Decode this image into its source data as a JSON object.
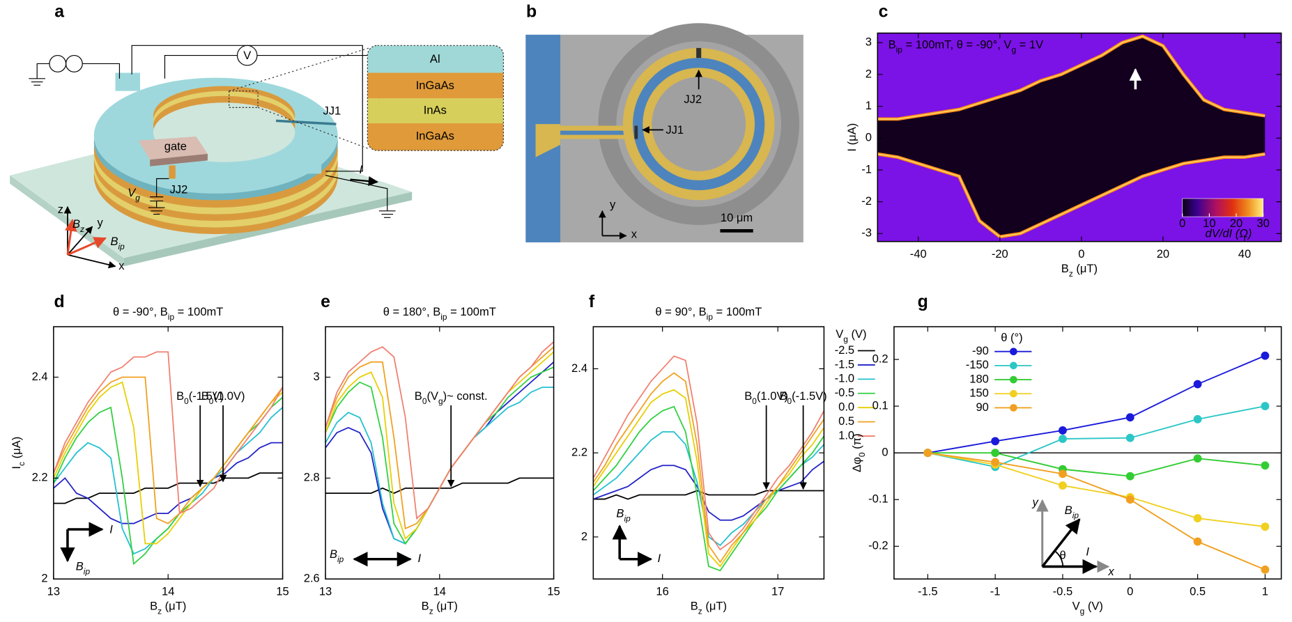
{
  "panel_labels": [
    "a",
    "b",
    "c",
    "d",
    "e",
    "f",
    "g"
  ],
  "schematic": {
    "layers": [
      "Al",
      "InGaAs",
      "InAs",
      "InGaAs"
    ],
    "gate": "gate",
    "jj1": "JJ1",
    "jj2": "JJ2",
    "voltmeter": "V",
    "current": "I",
    "gate_voltage": [
      "V",
      "g"
    ],
    "axes": [
      "z",
      "y",
      "x"
    ],
    "fields": [
      [
        "B",
        "z"
      ],
      [
        "B",
        "ip"
      ]
    ]
  },
  "micrograph": {
    "jj1": "JJ1",
    "jj2": "JJ2",
    "scale_bar": "10 μm",
    "axes": [
      "y",
      "x"
    ]
  },
  "chart_data": [
    {
      "type": "heatmap",
      "title": [
        "B",
        "ip",
        " = 100mT, θ = -90°, V",
        "g",
        " = 1V"
      ],
      "xlabel": [
        "B",
        "z",
        " (μT)"
      ],
      "ylabel": "I (μA)",
      "x": [
        -50,
        -45,
        -40,
        -35,
        -30,
        -25,
        -20,
        -15,
        -10,
        -5,
        0,
        5,
        10,
        15,
        20,
        25,
        30,
        35,
        40,
        45
      ],
      "ic_plus": [
        0.6,
        0.6,
        0.7,
        0.8,
        0.9,
        1.1,
        1.3,
        1.5,
        1.8,
        2.0,
        2.3,
        2.6,
        3.0,
        3.2,
        2.9,
        2.0,
        1.2,
        0.9,
        0.8,
        0.7
      ],
      "ic_minus": [
        -0.5,
        -0.6,
        -0.8,
        -1.0,
        -1.2,
        -2.6,
        -3.1,
        -3.0,
        -2.7,
        -2.4,
        -2.1,
        -1.8,
        -1.5,
        -1.2,
        -1.0,
        -0.8,
        -0.7,
        -0.6,
        -0.6,
        -0.5
      ],
      "xlim": [
        -50,
        49
      ],
      "ylim": [
        -3.25,
        3.3
      ],
      "xticks": [
        -40,
        -20,
        0,
        20,
        40
      ],
      "yticks": [
        -3,
        -2,
        -1,
        0,
        1,
        2,
        3
      ],
      "colorbar_label": "dV/dI (Ω)",
      "clim": [
        0,
        30
      ],
      "cticks": [
        0,
        10,
        20,
        30
      ]
    },
    {
      "type": "line",
      "title": [
        "θ = -90°, B",
        "ip",
        " = 100mT"
      ],
      "xlabel": [
        "B",
        "z",
        " (μT)"
      ],
      "ylabel": [
        "I",
        "c",
        " (μA)"
      ],
      "x": [
        13,
        13.1,
        13.2,
        13.3,
        13.4,
        13.5,
        13.6,
        13.7,
        13.8,
        13.9,
        14,
        14.1,
        14.2,
        14.3,
        14.4,
        14.5,
        14.6,
        14.7,
        14.8,
        14.9,
        15
      ],
      "xlim": [
        13,
        15
      ],
      "ylim": [
        2,
        2.5
      ],
      "xticks": [
        13,
        14,
        15
      ],
      "yticks": [
        2,
        2.2,
        2.4
      ],
      "series": [
        {
          "color": "#000000",
          "values": [
            2.15,
            2.15,
            2.16,
            2.16,
            2.17,
            2.17,
            2.17,
            2.17,
            2.18,
            2.18,
            2.18,
            2.19,
            2.19,
            2.19,
            2.19,
            2.2,
            2.2,
            2.2,
            2.21,
            2.21,
            2.21
          ]
        },
        {
          "color": "#2222c8",
          "values": [
            2.18,
            2.2,
            2.17,
            2.16,
            2.14,
            2.12,
            2.11,
            2.11,
            2.12,
            2.13,
            2.13,
            2.15,
            2.16,
            2.18,
            2.2,
            2.21,
            2.23,
            2.24,
            2.26,
            2.27,
            2.27
          ]
        },
        {
          "color": "#22c0d0",
          "values": [
            2.19,
            2.22,
            2.25,
            2.27,
            2.26,
            2.24,
            2.1,
            2.05,
            2.06,
            2.08,
            2.1,
            2.13,
            2.15,
            2.17,
            2.2,
            2.22,
            2.25,
            2.27,
            2.29,
            2.32,
            2.34
          ]
        },
        {
          "color": "#30d040",
          "values": [
            2.19,
            2.24,
            2.28,
            2.31,
            2.33,
            2.34,
            2.2,
            2.03,
            2.05,
            2.08,
            2.1,
            2.13,
            2.15,
            2.18,
            2.2,
            2.23,
            2.26,
            2.29,
            2.31,
            2.34,
            2.36
          ]
        },
        {
          "color": "#e6cf00",
          "values": [
            2.2,
            2.25,
            2.29,
            2.33,
            2.36,
            2.38,
            2.39,
            2.3,
            2.07,
            2.07,
            2.09,
            2.12,
            2.15,
            2.18,
            2.2,
            2.23,
            2.26,
            2.29,
            2.32,
            2.35,
            2.37
          ]
        },
        {
          "color": "#f0a020",
          "values": [
            2.21,
            2.26,
            2.3,
            2.34,
            2.37,
            2.39,
            2.4,
            2.4,
            2.4,
            2.12,
            2.11,
            2.13,
            2.16,
            2.18,
            2.2,
            2.23,
            2.26,
            2.29,
            2.32,
            2.35,
            2.38
          ]
        },
        {
          "color": "#f08070",
          "values": [
            2.21,
            2.27,
            2.31,
            2.35,
            2.38,
            2.41,
            2.42,
            2.44,
            2.44,
            2.45,
            2.45,
            2.13,
            2.14,
            2.16,
            2.18,
            2.22,
            2.25,
            2.28,
            2.31,
            2.34,
            2.38
          ]
        }
      ],
      "annotations": [
        {
          "label": [
            "B",
            "0",
            "(-1.5V)"
          ],
          "color": "#2222c8",
          "x": 14.28,
          "y": 2.18
        },
        {
          "label": [
            "B",
            "0",
            "(1.0V)"
          ],
          "color": "#e02a10",
          "x": 14.48,
          "y": 2.19
        }
      ],
      "inset": {
        "current": "I",
        "field": [
          "B",
          "ip"
        ]
      }
    },
    {
      "type": "line",
      "title": [
        "θ = 180°, B",
        "ip",
        " = 100mT"
      ],
      "xlabel": [
        "B",
        "z",
        " (μT)"
      ],
      "x": [
        13,
        13.1,
        13.2,
        13.3,
        13.4,
        13.5,
        13.6,
        13.7,
        13.8,
        13.9,
        14,
        14.1,
        14.2,
        14.3,
        14.4,
        14.5,
        14.6,
        14.7,
        14.8,
        14.9,
        15
      ],
      "xlim": [
        13,
        15
      ],
      "ylim": [
        2.6,
        3.1
      ],
      "xticks": [
        13,
        14,
        15
      ],
      "yticks": [
        2.6,
        2.8,
        3
      ],
      "series": [
        {
          "color": "#000000",
          "values": [
            2.77,
            2.77,
            2.77,
            2.77,
            2.77,
            2.78,
            2.77,
            2.78,
            2.78,
            2.78,
            2.78,
            2.78,
            2.79,
            2.79,
            2.79,
            2.79,
            2.79,
            2.8,
            2.8,
            2.8,
            2.8
          ]
        },
        {
          "color": "#2222c8",
          "values": [
            2.86,
            2.89,
            2.9,
            2.89,
            2.85,
            2.74,
            2.68,
            2.67,
            2.7,
            2.74,
            2.78,
            2.82,
            2.85,
            2.88,
            2.9,
            2.93,
            2.95,
            2.97,
            2.99,
            3.01,
            3.03
          ]
        },
        {
          "color": "#22c0d0",
          "values": [
            2.87,
            2.91,
            2.93,
            2.92,
            2.87,
            2.75,
            2.68,
            2.67,
            2.7,
            2.74,
            2.78,
            2.82,
            2.85,
            2.88,
            2.9,
            2.92,
            2.94,
            2.95,
            2.97,
            2.98,
            2.98
          ]
        },
        {
          "color": "#30d040",
          "values": [
            2.89,
            2.94,
            2.97,
            2.99,
            2.98,
            2.88,
            2.71,
            2.67,
            2.7,
            2.74,
            2.78,
            2.82,
            2.85,
            2.88,
            2.91,
            2.93,
            2.96,
            2.98,
            3.0,
            3.01,
            3.02
          ]
        },
        {
          "color": "#e6cf00",
          "values": [
            2.89,
            2.95,
            2.98,
            3.0,
            3.01,
            2.96,
            2.75,
            2.68,
            2.7,
            2.74,
            2.78,
            2.82,
            2.85,
            2.88,
            2.91,
            2.94,
            2.97,
            2.99,
            3.01,
            3.03,
            3.05
          ]
        },
        {
          "color": "#f0a020",
          "values": [
            2.9,
            2.96,
            3.0,
            3.02,
            3.03,
            3.03,
            2.88,
            2.7,
            2.71,
            2.74,
            2.78,
            2.82,
            2.85,
            2.88,
            2.91,
            2.94,
            2.97,
            3.0,
            3.02,
            3.04,
            3.06
          ]
        },
        {
          "color": "#f08070",
          "values": [
            2.9,
            2.97,
            3.01,
            3.03,
            3.05,
            3.06,
            3.04,
            2.92,
            2.72,
            2.74,
            2.78,
            2.82,
            2.85,
            2.88,
            2.91,
            2.94,
            2.97,
            3.0,
            3.02,
            3.05,
            3.07
          ]
        }
      ],
      "annotations": [
        {
          "label": [
            "B",
            "0",
            "(V",
            "g",
            ")~ const."
          ],
          "color": "#000000",
          "x": 14.1,
          "y": 2.78
        }
      ],
      "inset": {
        "current": "I",
        "field": [
          "B",
          "ip"
        ]
      }
    },
    {
      "type": "line",
      "title": [
        "θ = 90°, B",
        "ip",
        " = 100mT"
      ],
      "xlabel": [
        "B",
        "z",
        " (μT)"
      ],
      "x": [
        15.4,
        15.5,
        15.6,
        15.7,
        15.8,
        15.9,
        16,
        16.1,
        16.2,
        16.3,
        16.4,
        16.5,
        16.6,
        16.7,
        16.8,
        16.9,
        17,
        17.1,
        17.2,
        17.3,
        17.4
      ],
      "xlim": [
        15.4,
        17.4
      ],
      "ylim": [
        1.9,
        2.5
      ],
      "xticks": [
        16,
        17
      ],
      "yticks": [
        2,
        2.2,
        2.4
      ],
      "legend": "outside right",
      "legend_title": [
        "V",
        "g",
        " (V)"
      ],
      "series": [
        {
          "name": "-2.5",
          "color": "#000000",
          "values": [
            2.09,
            2.09,
            2.1,
            2.09,
            2.1,
            2.1,
            2.1,
            2.1,
            2.1,
            2.11,
            2.1,
            2.1,
            2.1,
            2.1,
            2.1,
            2.11,
            2.11,
            2.11,
            2.11,
            2.11,
            2.11
          ]
        },
        {
          "name": "-1.5",
          "color": "#2222c8",
          "values": [
            2.09,
            2.1,
            2.11,
            2.12,
            2.14,
            2.16,
            2.17,
            2.17,
            2.16,
            2.12,
            2.06,
            2.04,
            2.04,
            2.05,
            2.07,
            2.09,
            2.11,
            2.12,
            2.13,
            2.16,
            2.18
          ]
        },
        {
          "name": "-1.0",
          "color": "#22c0d0",
          "values": [
            2.1,
            2.12,
            2.14,
            2.17,
            2.2,
            2.23,
            2.25,
            2.25,
            2.22,
            2.13,
            2.0,
            1.98,
            2.01,
            2.03,
            2.06,
            2.09,
            2.11,
            2.14,
            2.17,
            2.19,
            2.22
          ]
        },
        {
          "name": "-0.5",
          "color": "#30d040",
          "values": [
            2.11,
            2.14,
            2.17,
            2.21,
            2.25,
            2.28,
            2.3,
            2.31,
            2.25,
            2.1,
            1.93,
            1.92,
            1.96,
            2.0,
            2.04,
            2.07,
            2.11,
            2.14,
            2.17,
            2.2,
            2.24
          ]
        },
        {
          "name": "0.0",
          "color": "#e6cf00",
          "values": [
            2.12,
            2.16,
            2.2,
            2.24,
            2.28,
            2.32,
            2.34,
            2.35,
            2.33,
            2.18,
            1.96,
            1.93,
            1.97,
            2.01,
            2.04,
            2.08,
            2.12,
            2.15,
            2.19,
            2.22,
            2.26
          ]
        },
        {
          "name": "0.5",
          "color": "#f0a020",
          "values": [
            2.13,
            2.17,
            2.22,
            2.26,
            2.3,
            2.34,
            2.37,
            2.39,
            2.37,
            2.22,
            1.98,
            1.94,
            1.98,
            2.01,
            2.05,
            2.09,
            2.12,
            2.16,
            2.2,
            2.24,
            2.28
          ]
        },
        {
          "name": "1.0",
          "color": "#f08070",
          "values": [
            2.14,
            2.19,
            2.24,
            2.29,
            2.33,
            2.37,
            2.4,
            2.43,
            2.42,
            2.27,
            2.01,
            1.97,
            1.99,
            2.02,
            2.06,
            2.1,
            2.14,
            2.17,
            2.21,
            2.25,
            2.3
          ]
        }
      ],
      "annotations": [
        {
          "label": [
            "B",
            "0",
            "(1.0V)"
          ],
          "color": "#e02a10",
          "x": 16.9,
          "y": 2.11
        },
        {
          "label": [
            "B",
            "0",
            "(-1.5V)"
          ],
          "color": "#2222c8",
          "x": 17.22,
          "y": 2.11
        }
      ],
      "inset": {
        "current": "I",
        "field": [
          "B",
          "ip"
        ]
      }
    },
    {
      "type": "line",
      "markers": true,
      "xlabel": [
        "V",
        "g",
        " (V)"
      ],
      "ylabel": [
        "Δφ",
        "0",
        " (π)"
      ],
      "x": [
        -1.5,
        -1,
        -0.5,
        0,
        0.5,
        1
      ],
      "xlim": [
        -1.75,
        1.12
      ],
      "ylim": [
        -0.27,
        0.27
      ],
      "xticks": [
        -1.5,
        -1,
        -0.5,
        0,
        0.5,
        1
      ],
      "yticks": [
        -0.2,
        -0.1,
        0,
        0.1,
        0.2
      ],
      "reference_line": 0,
      "legend": "upper left",
      "legend_title": "θ (°)",
      "series": [
        {
          "name": "-90",
          "color": "#1a1adb",
          "values": [
            0,
            0.025,
            0.048,
            0.076,
            0.147,
            0.208
          ]
        },
        {
          "name": "-150",
          "color": "#2cc6c6",
          "values": [
            0,
            -0.03,
            0.03,
            0.032,
            0.072,
            0.1
          ]
        },
        {
          "name": "180",
          "color": "#33cc33",
          "values": [
            0,
            0,
            -0.035,
            -0.05,
            -0.012,
            -0.027
          ]
        },
        {
          "name": "150",
          "color": "#f0d020",
          "values": [
            0,
            -0.025,
            -0.07,
            -0.095,
            -0.14,
            -0.158
          ]
        },
        {
          "name": "90",
          "color": "#f0a020",
          "values": [
            0,
            -0.02,
            -0.045,
            -0.1,
            -0.19,
            -0.25
          ]
        }
      ],
      "inset": {
        "axes": [
          "y",
          "x"
        ],
        "field": [
          "B",
          "ip"
        ],
        "angle": "θ",
        "current": "I"
      }
    }
  ]
}
